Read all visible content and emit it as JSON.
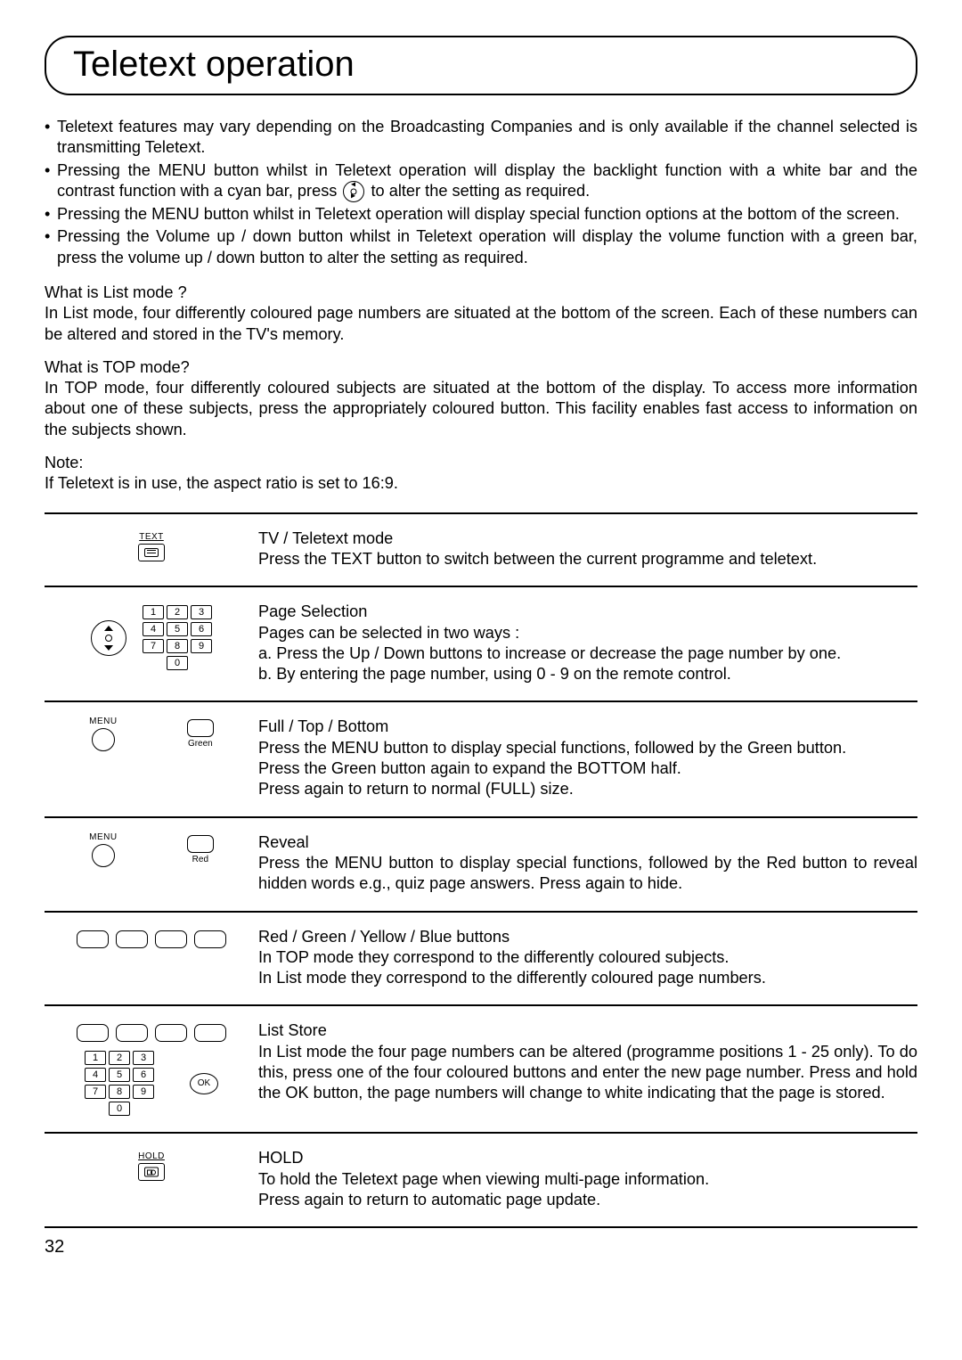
{
  "page": {
    "title": "Teletext operation",
    "number": "32"
  },
  "intro": {
    "bullets": [
      "Teletext features may vary depending on the Broadcasting Companies and is only available if the channel selected is transmitting Teletext.",
      "Pressing the MENU button whilst in Teletext operation will display the backlight function with a white bar and the contrast function with a cyan bar, press         to alter the setting as required.",
      "Pressing the MENU button whilst in Teletext operation will display special function options at the bottom of the screen.",
      "Pressing the Volume up / down   button whilst in Teletext operation will display the volume function with a green bar, press the volume up / down button to alter the setting as required."
    ]
  },
  "list_mode": {
    "q": "What is List mode ?",
    "a": "In List mode, four differently coloured page numbers are situated at the bottom of the screen. Each of these numbers can be altered and stored in the TV's memory."
  },
  "top_mode": {
    "q": "What is TOP mode?",
    "a": "In TOP mode, four differently coloured subjects are situated at the bottom of the display. To access more information about one of these subjects, press the appropriately coloured button. This facility enables fast access to information on the subjects shown."
  },
  "note": {
    "label": "Note:",
    "text": "If Teletext is in use, the aspect ratio is set to 16:9."
  },
  "rows": {
    "text_mode": {
      "icon_label": "TEXT",
      "heading": "TV / Teletext mode",
      "body": "Press the TEXT button to switch between the current programme and teletext."
    },
    "page_sel": {
      "heading": "Page Selection",
      "l1": "Pages can be selected in two ways :",
      "l2": "a. Press the Up / Down buttons to increase or decrease the page number by one.",
      "l3": "b. By entering the page number, using 0 - 9 on the remote control."
    },
    "full": {
      "menu_label": "MENU",
      "green_label": "Green",
      "heading": "Full / Top / Bottom",
      "l1": "Press the MENU button to display special functions, followed by the Green  button.",
      "l2": "Press the Green  button again to expand the BOTTOM half.",
      "l3": "Press again to return to normal (FULL) size."
    },
    "reveal": {
      "menu_label": "MENU",
      "red_label": "Red",
      "heading": "Reveal",
      "body": "Press the MENU button to display special functions, followed by the Red button to reveal hidden words e.g., quiz page answers. Press again to hide."
    },
    "rgby": {
      "heading": "Red / Green / Yellow / Blue buttons",
      "l1": "In TOP mode they correspond to the differently coloured subjects.",
      "l2": "In List mode they correspond to the differently coloured page numbers."
    },
    "list_store": {
      "ok_label": "OK",
      "heading": "List Store",
      "body": "In List mode the four page numbers can be altered (programme positions 1 - 25 only). To do this, press one of the four coloured buttons and enter the new page number. Press and hold the OK button, the page numbers will change to white indicating that the page is stored."
    },
    "hold": {
      "icon_label": "HOLD",
      "heading": "HOLD",
      "l1": "To hold the Teletext page when viewing multi-page information.",
      "l2": "Press again to return to automatic page update."
    }
  },
  "keypad": [
    "1",
    "2",
    "3",
    "4",
    "5",
    "6",
    "7",
    "8",
    "9",
    "0"
  ]
}
